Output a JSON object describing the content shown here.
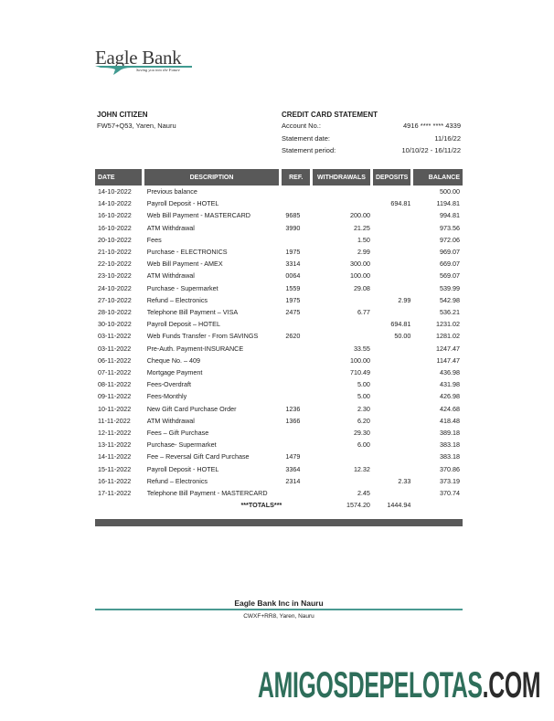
{
  "logo": {
    "name": "Eagle Bank",
    "tagline": "Saving you into the Future"
  },
  "customer": {
    "name": "JOHN CITIZEN",
    "address": "FW57+Q53, Yaren, Nauru"
  },
  "statement": {
    "title": "CREDIT CARD STATEMENT",
    "account_label": "Account No.:",
    "account_value": "4916 **** **** 4339",
    "date_label": "Statement date:",
    "date_value": "11/16/22",
    "period_label": "Statement period:",
    "period_value": "10/10/22 - 16/11/22"
  },
  "table": {
    "headers": [
      "DATE",
      "DESCRIPTION",
      "REF.",
      "WITHDRAWALS",
      "DEPOSITS",
      "BALANCE"
    ],
    "rows": [
      [
        "14-10-2022",
        "Previous balance",
        "",
        "",
        "",
        "500.00"
      ],
      [
        "14-10-2022",
        "Payroll Deposit - HOTEL",
        "",
        "",
        "694.81",
        "1194.81"
      ],
      [
        "16-10-2022",
        "Web Bill Payment  - MASTERCARD",
        "9685",
        "200.00",
        "",
        "994.81"
      ],
      [
        "16-10-2022",
        "ATM Withdrawal",
        "3990",
        "21.25",
        "",
        "973.56"
      ],
      [
        "20-10-2022",
        "Fees",
        "",
        "1.50",
        "",
        "972.06"
      ],
      [
        "21-10-2022",
        "Purchase  - ELECTRONICS",
        "1975",
        "2.99",
        "",
        "969.07"
      ],
      [
        "22-10-2022",
        "Web Bill Payment - AMEX",
        "3314",
        "300.00",
        "",
        "669.07"
      ],
      [
        "23-10-2022",
        "ATM Withdrawal",
        "0064",
        "100.00",
        "",
        "569.07"
      ],
      [
        "24-10-2022",
        "Purchase - Supermarket",
        "1559",
        "29.08",
        "",
        "539.99"
      ],
      [
        "27-10-2022",
        "Refund – Electronics",
        "1975",
        "",
        "2.99",
        "542.98"
      ],
      [
        "28-10-2022",
        "Telephone Bill Payment – VISA",
        "2475",
        "6.77",
        "",
        "536.21"
      ],
      [
        "30-10-2022",
        "Payroll Deposit – HOTEL",
        "",
        "",
        "694.81",
        "1231.02"
      ],
      [
        "03-11-2022",
        "Web Funds Transfer - From SAVINGS",
        "2620",
        "",
        "50.00",
        "1281.02"
      ],
      [
        "03-11-2022",
        "Pre-Auth. Payment-INSURANCE",
        "",
        "33.55",
        "",
        "1247.47"
      ],
      [
        "06-11-2022",
        "Cheque No. – 409",
        "",
        "100.00",
        "",
        "1147.47"
      ],
      [
        "07-11-2022",
        "Mortgage Payment",
        "",
        "710.49",
        "",
        "436.98"
      ],
      [
        "08-11-2022",
        "Fees-Overdraft",
        "",
        "5.00",
        "",
        "431.98"
      ],
      [
        "09-11-2022",
        "Fees-Monthly",
        "",
        "5.00",
        "",
        "426.98"
      ],
      [
        "10-11-2022",
        "New Gift Card Purchase Order",
        "1236",
        "2.30",
        "",
        "424.68"
      ],
      [
        "11-11-2022",
        "ATM Withdrawal",
        "1366",
        "6.20",
        "",
        "418.48"
      ],
      [
        "12-11-2022",
        "Fees – Gift Purchase",
        "",
        "29.30",
        "",
        "389.18"
      ],
      [
        "13-11-2022",
        "Purchase- Supermarket",
        "",
        "6.00",
        "",
        "383.18"
      ],
      [
        "14-11-2022",
        "Fee – Reversal Gift Card Purchase",
        "1479",
        "",
        "",
        "383.18"
      ],
      [
        "15-11-2022",
        "Payroll Deposit - HOTEL",
        "3364",
        "12.32",
        "",
        "370.86"
      ],
      [
        "16-11-2022",
        "Refund – Electronics",
        "2314",
        "",
        "2.33",
        "373.19"
      ],
      [
        "17-11-2022",
        "Telephone Bill Payment - MASTERCARD",
        "",
        "2.45",
        "",
        "370.74"
      ]
    ],
    "totals": {
      "label": "***TOTALS***",
      "withdrawals": "1574.20",
      "deposits": "1444.94"
    }
  },
  "footer": {
    "name": "Eagle Bank Inc in Nauru",
    "address": "CWXF+RR8, Yaren, Nauru"
  },
  "watermark": {
    "main": "AMIGOSDEPELOTAS",
    "suffix": ".COM"
  },
  "colors": {
    "header_bg": "#595959",
    "accent_teal": "#4a9a92",
    "watermark_green": "#2e6e5a",
    "watermark_dark": "#2b2b2b"
  }
}
